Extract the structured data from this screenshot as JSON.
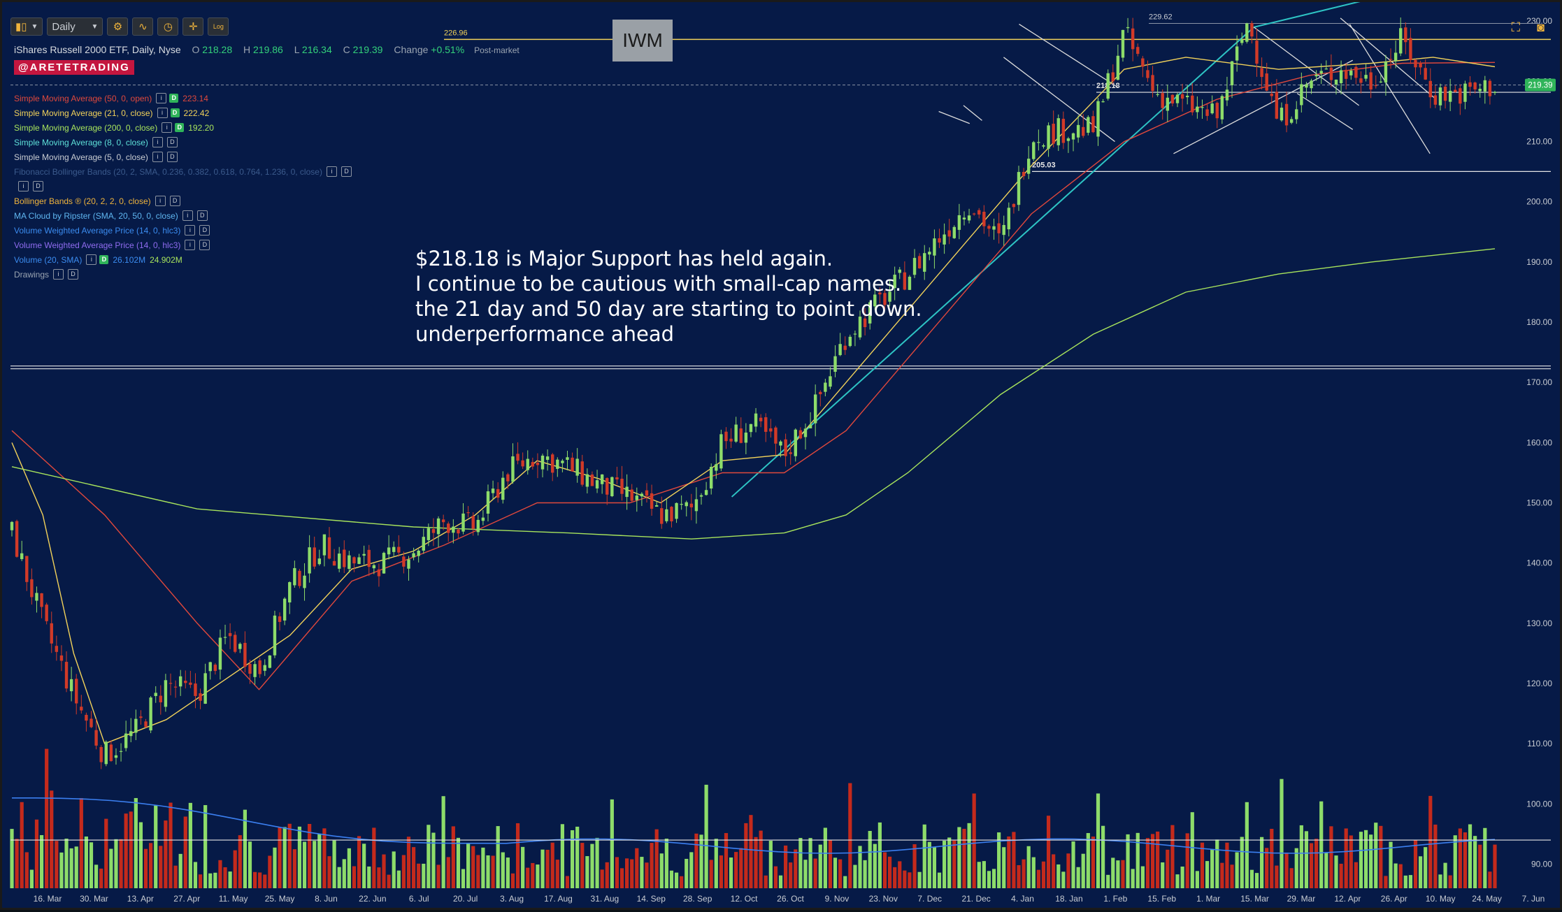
{
  "toolbar": {
    "interval": "Daily",
    "log_label": "Log"
  },
  "symbol_box": "IWM",
  "header": {
    "title": "iShares Russell 2000 ETF, Daily, Nyse",
    "o_label": "O",
    "o_value": "218.28",
    "h_label": "H",
    "h_value": "219.86",
    "l_label": "L",
    "l_value": "216.34",
    "c_label": "C",
    "c_value": "219.39",
    "change_label": "Change",
    "change_value": "+0.51%",
    "session": "Post-market"
  },
  "brand": "@ARETETRADING",
  "legend": [
    {
      "label": "Simple Moving Average (50, 0, open)",
      "color": "#e0483c",
      "values": [
        "223.14"
      ]
    },
    {
      "label": "Simple Moving Average (21, 0, close)",
      "color": "#f2d25a",
      "values": [
        "222.42"
      ]
    },
    {
      "label": "Simple Moving Average (200, 0, close)",
      "color": "#a8e45c",
      "values": [
        "192.20"
      ]
    },
    {
      "label": "Simple Moving Average (8, 0, close)",
      "color": "#5ee0d8",
      "values": []
    },
    {
      "label": "Simple Moving Average (5, 0, close)",
      "color": "#c8ccd2",
      "values": []
    },
    {
      "label": "Fibonacci Bollinger Bands (20, 2, SMA, 0.236, 0.382, 0.618, 0.764, 1.236, 0, close)",
      "color": "#3b5a8c",
      "values": []
    },
    {
      "label": "",
      "color": "#3b5a8c",
      "values": []
    },
    {
      "label": "Bollinger Bands ® (20, 2, 2, 0, close)",
      "color": "#f0b43c",
      "values": []
    },
    {
      "label": "MA Cloud by Ripster (SMA, 20, 50, 0, close)",
      "color": "#5fb6f0",
      "values": []
    },
    {
      "label": "Volume Weighted Average Price (14, 0, hlc3)",
      "color": "#3b8cf0",
      "values": []
    },
    {
      "label": "Volume Weighted Average Price (14, 0, hlc3)",
      "color": "#8f6cf0",
      "values": []
    },
    {
      "label": "Volume (20, SMA)",
      "color": "#3b8cf0",
      "values": [
        "26.102M",
        "24.902M"
      ]
    },
    {
      "label": "Drawings",
      "color": "#9aa4b1",
      "values": []
    }
  ],
  "annotation": [
    "$218.18 is Major Support has held again.",
    "I continue to be cautious with small-cap names.",
    "the 21 day and 50 day are starting to point down.",
    "underperformance ahead"
  ],
  "chart_data": {
    "type": "candlestick",
    "title": "iShares Russell 2000 ETF, Daily, Nyse",
    "xlabel": "",
    "ylabel": "",
    "x_tick_labels": [
      "16. Mar",
      "30. Mar",
      "13. Apr",
      "27. Apr",
      "11. May",
      "25. May",
      "8. Jun",
      "22. Jun",
      "6. Jul",
      "20. Jul",
      "3. Aug",
      "17. Aug",
      "31. Aug",
      "14. Sep",
      "28. Sep",
      "12. Oct",
      "26. Oct",
      "9. Nov",
      "23. Nov",
      "7. Dec",
      "21. Dec",
      "4. Jan",
      "18. Jan",
      "1. Feb",
      "15. Feb",
      "1. Mar",
      "15. Mar",
      "29. Mar",
      "12. Apr",
      "26. Apr",
      "10. May",
      "24. May",
      "7. Jun"
    ],
    "y_ticks": [
      90,
      100,
      110,
      120,
      130,
      140,
      150,
      160,
      170,
      180,
      190,
      200,
      210,
      220,
      230
    ],
    "y_tick_labels": [
      "90.00",
      "100.00",
      "110.00",
      "120.00",
      "130.00",
      "140.00",
      "150.00",
      "160.00",
      "170.00",
      "180.00",
      "190.00",
      "200.00",
      "210.00",
      "220.00",
      "230.00"
    ],
    "ylim": [
      86,
      232
    ],
    "last_price": {
      "value": 219.39,
      "label": "219.39"
    },
    "close_path": [
      [
        0,
        145
      ],
      [
        1,
        130
      ],
      [
        2,
        118
      ],
      [
        3,
        108
      ],
      [
        4,
        112
      ],
      [
        5,
        120
      ],
      [
        6,
        118
      ],
      [
        7,
        128
      ],
      [
        8,
        122
      ],
      [
        9,
        136
      ],
      [
        10,
        143
      ],
      [
        11,
        140
      ],
      [
        12,
        140
      ],
      [
        13,
        142
      ],
      [
        14,
        147
      ],
      [
        15,
        146
      ],
      [
        16,
        155
      ],
      [
        17,
        158
      ],
      [
        18,
        156
      ],
      [
        19,
        153
      ],
      [
        20,
        151
      ],
      [
        21,
        148
      ],
      [
        22,
        149
      ],
      [
        23,
        160
      ],
      [
        24,
        163
      ],
      [
        25,
        158
      ],
      [
        26,
        166
      ],
      [
        27,
        178
      ],
      [
        28,
        183
      ],
      [
        29,
        188
      ],
      [
        30,
        194
      ],
      [
        31,
        200
      ],
      [
        32,
        193
      ],
      [
        33,
        211
      ],
      [
        34,
        212
      ],
      [
        35,
        212
      ],
      [
        36,
        228
      ],
      [
        37,
        218
      ],
      [
        38,
        216
      ],
      [
        39,
        214
      ],
      [
        40,
        230
      ],
      [
        41,
        213
      ],
      [
        42,
        220
      ],
      [
        43,
        222
      ],
      [
        44,
        220
      ],
      [
        45,
        227
      ],
      [
        46,
        218
      ],
      [
        47,
        218
      ],
      [
        48,
        219.39
      ]
    ],
    "moving_averages": [
      {
        "name": "SMA 50",
        "color": "#e0483c",
        "points": [
          [
            0,
            162
          ],
          [
            3,
            148
          ],
          [
            6,
            130
          ],
          [
            8,
            119
          ],
          [
            9,
            125
          ],
          [
            11,
            137
          ],
          [
            14,
            143
          ],
          [
            17,
            150
          ],
          [
            20,
            150
          ],
          [
            23,
            155
          ],
          [
            25,
            155
          ],
          [
            27,
            162
          ],
          [
            30,
            180
          ],
          [
            33,
            198
          ],
          [
            36,
            210
          ],
          [
            39,
            217
          ],
          [
            42,
            221
          ],
          [
            45,
            223
          ],
          [
            48,
            223.14
          ]
        ]
      },
      {
        "name": "SMA 21",
        "color": "#f2d25a",
        "points": [
          [
            0,
            160
          ],
          [
            1,
            148
          ],
          [
            2,
            125
          ],
          [
            3,
            110
          ],
          [
            5,
            114
          ],
          [
            7,
            121
          ],
          [
            9,
            128
          ],
          [
            11,
            139
          ],
          [
            13,
            142
          ],
          [
            15,
            148
          ],
          [
            17,
            157
          ],
          [
            19,
            154
          ],
          [
            21,
            150
          ],
          [
            23,
            157
          ],
          [
            25,
            158
          ],
          [
            27,
            170
          ],
          [
            30,
            188
          ],
          [
            33,
            206
          ],
          [
            36,
            222
          ],
          [
            38,
            224
          ],
          [
            41,
            222
          ],
          [
            44,
            223
          ],
          [
            46,
            224
          ],
          [
            48,
            222.42
          ]
        ]
      },
      {
        "name": "SMA 200",
        "color": "#a8e45c",
        "points": [
          [
            0,
            156
          ],
          [
            6,
            149
          ],
          [
            13,
            146
          ],
          [
            18,
            145
          ],
          [
            22,
            144
          ],
          [
            25,
            145
          ],
          [
            27,
            148
          ],
          [
            29,
            155
          ],
          [
            32,
            168
          ],
          [
            35,
            178
          ],
          [
            38,
            185
          ],
          [
            41,
            188
          ],
          [
            44,
            190
          ],
          [
            48,
            192.2
          ]
        ]
      }
    ],
    "horizontal_lines": [
      {
        "value": 226.96,
        "label": "226.96",
        "color": "#f2d25a"
      },
      {
        "value": 218.18,
        "label": "218.18",
        "color": "#e6e6e6"
      },
      {
        "value": 205.03,
        "label": "205.03",
        "color": "#e6e6e6"
      },
      {
        "value": 229.62,
        "label": "229.62",
        "color": "#e6e6e6"
      },
      {
        "value": 172.5,
        "label": "",
        "color": "#e6e6e6"
      }
    ],
    "volume": {
      "axis_ylim": [
        86,
        232
      ],
      "reference_price_level": 94,
      "note": "volume bars shown as relative heights"
    }
  }
}
